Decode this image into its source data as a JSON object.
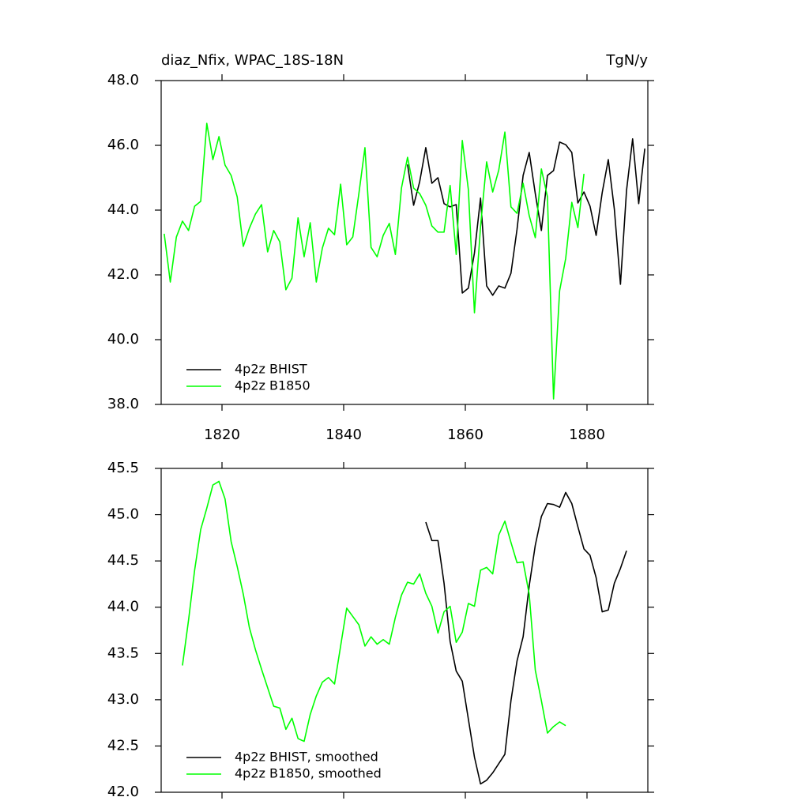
{
  "chart_data": [
    {
      "type": "line",
      "title": "diaz_Nfix, WPAC_18S-18N",
      "right_title": "TgN/y",
      "xlim": [
        1810,
        1890
      ],
      "xticks": [
        1820,
        1840,
        1860,
        1880
      ],
      "show_xtick_labels": true,
      "ylim": [
        38,
        48
      ],
      "yticks": [
        {
          "value": 38,
          "label": "38.0"
        },
        {
          "value": 40,
          "label": "40.0"
        },
        {
          "value": 42,
          "label": "42.0"
        },
        {
          "value": 44,
          "label": "44.0"
        },
        {
          "value": 46,
          "label": "46.0"
        },
        {
          "value": 48,
          "label": "48.0"
        }
      ],
      "legend": "lower left",
      "series": [
        {
          "name": "4p2z BHIST",
          "color": "#000000",
          "x": [
            1850.5,
            1851.5,
            1852.5,
            1853.5,
            1854.5,
            1855.5,
            1856.5,
            1857.5,
            1858.5,
            1859.5,
            1860.5,
            1861.5,
            1862.5,
            1863.5,
            1864.5,
            1865.5,
            1866.5,
            1867.5,
            1868.5,
            1869.5,
            1870.5,
            1871.5,
            1872.5,
            1873.5,
            1874.5,
            1875.5,
            1876.5,
            1877.5,
            1878.5,
            1879.5,
            1880.5,
            1881.5,
            1882.5,
            1883.5,
            1884.5,
            1885.5,
            1886.5,
            1887.5,
            1888.5,
            1889.5
          ],
          "values": [
            45.41,
            44.15,
            44.88,
            45.93,
            44.83,
            45.0,
            44.2,
            44.1,
            44.17,
            41.44,
            41.59,
            42.68,
            44.37,
            41.66,
            41.37,
            41.66,
            41.59,
            42.05,
            43.41,
            45.07,
            45.78,
            44.51,
            43.37,
            45.07,
            45.22,
            46.1,
            46.02,
            45.78,
            44.22,
            44.56,
            44.12,
            43.22,
            44.54,
            45.56,
            44.02,
            41.71,
            44.61,
            46.2,
            44.2,
            45.9
          ]
        },
        {
          "name": "4p2z B1850",
          "color": "#00ff00",
          "x": [
            1810.5,
            1811.5,
            1812.5,
            1813.5,
            1814.5,
            1815.5,
            1816.5,
            1817.5,
            1818.5,
            1819.5,
            1820.5,
            1821.5,
            1822.5,
            1823.5,
            1824.5,
            1825.5,
            1826.5,
            1827.5,
            1828.5,
            1829.5,
            1830.5,
            1831.5,
            1832.5,
            1833.5,
            1834.5,
            1835.5,
            1836.5,
            1837.5,
            1838.5,
            1839.5,
            1840.5,
            1841.5,
            1842.5,
            1843.5,
            1844.5,
            1845.5,
            1846.5,
            1847.5,
            1848.5,
            1849.5,
            1850.5,
            1851.5,
            1852.5,
            1853.5,
            1854.5,
            1855.5,
            1856.5,
            1857.5,
            1858.5,
            1859.5,
            1860.5,
            1861.5,
            1862.5,
            1863.5,
            1864.5,
            1865.5,
            1866.5,
            1867.5,
            1868.5,
            1869.5,
            1870.5,
            1871.5,
            1872.5,
            1873.5,
            1874.5,
            1875.5,
            1876.5,
            1877.5,
            1878.5,
            1879.5
          ],
          "values": [
            43.27,
            41.78,
            43.17,
            43.66,
            43.37,
            44.12,
            44.27,
            46.68,
            45.56,
            46.27,
            45.39,
            45.07,
            44.41,
            42.88,
            43.44,
            43.88,
            44.17,
            42.71,
            43.37,
            43.02,
            41.54,
            41.9,
            43.76,
            42.56,
            43.61,
            41.78,
            42.83,
            43.44,
            43.24,
            44.8,
            42.93,
            43.17,
            44.51,
            45.93,
            42.85,
            42.56,
            43.22,
            43.59,
            42.63,
            44.68,
            45.63,
            44.68,
            44.51,
            44.15,
            43.51,
            43.32,
            43.32,
            44.76,
            42.63,
            46.15,
            44.63,
            40.83,
            43.49,
            45.49,
            44.56,
            45.24,
            46.41,
            44.1,
            43.9,
            44.83,
            43.83,
            43.15,
            45.27,
            44.41,
            38.17,
            41.51,
            42.51,
            44.24,
            43.46,
            45.12
          ]
        }
      ]
    },
    {
      "type": "line",
      "xlim": [
        1810,
        1890
      ],
      "xticks": [
        1820,
        1840,
        1860,
        1880
      ],
      "show_xtick_labels": false,
      "ylim": [
        42,
        45.5
      ],
      "yticks": [
        {
          "value": 42,
          "label": "42.0"
        },
        42.5,
        {
          "value": 43,
          "label": "43.0"
        },
        43.5,
        {
          "value": 44,
          "label": "44.0"
        },
        44.5,
        {
          "value": 45,
          "label": "45.0"
        },
        45.5
      ],
      "legend": "lower left",
      "series": [
        {
          "name": "4p2z BHIST, smoothed",
          "color": "#000000",
          "x": [
            1853.5,
            1854.5,
            1855.5,
            1856.5,
            1857.5,
            1858.5,
            1859.5,
            1860.5,
            1861.5,
            1862.5,
            1863.5,
            1864.5,
            1865.5,
            1866.5,
            1867.5,
            1868.5,
            1869.5,
            1870.5,
            1871.5,
            1872.5,
            1873.5,
            1874.5,
            1875.5,
            1876.5,
            1877.5,
            1878.5,
            1879.5,
            1880.5,
            1881.5,
            1882.5,
            1883.5,
            1884.5,
            1885.5,
            1886.5
          ],
          "values": [
            44.92,
            44.72,
            44.72,
            44.26,
            43.63,
            43.31,
            43.2,
            42.79,
            42.38,
            42.09,
            42.13,
            42.21,
            42.31,
            42.41,
            42.99,
            43.42,
            43.68,
            44.23,
            44.67,
            44.98,
            45.12,
            45.11,
            45.08,
            45.24,
            45.12,
            44.87,
            44.63,
            44.56,
            44.32,
            43.95,
            43.97,
            44.26,
            44.42,
            44.61
          ]
        },
        {
          "name": "4p2z B1850, smoothed",
          "color": "#00ff00",
          "x": [
            1813.5,
            1814.5,
            1815.5,
            1816.5,
            1817.5,
            1818.5,
            1819.5,
            1820.5,
            1821.5,
            1822.5,
            1823.5,
            1824.5,
            1825.5,
            1826.5,
            1827.5,
            1828.5,
            1829.5,
            1830.5,
            1831.5,
            1832.5,
            1833.5,
            1834.5,
            1835.5,
            1836.5,
            1837.5,
            1838.5,
            1839.5,
            1840.5,
            1841.5,
            1842.5,
            1843.5,
            1844.5,
            1845.5,
            1846.5,
            1847.5,
            1848.5,
            1849.5,
            1850.5,
            1851.5,
            1852.5,
            1853.5,
            1854.5,
            1855.5,
            1856.5,
            1857.5,
            1858.5,
            1859.5,
            1860.5,
            1861.5,
            1862.5,
            1863.5,
            1864.5,
            1865.5,
            1866.5,
            1867.5,
            1868.5,
            1869.5,
            1870.5,
            1871.5,
            1872.5,
            1873.5,
            1874.5,
            1875.5,
            1876.5
          ],
          "values": [
            43.37,
            43.86,
            44.4,
            44.84,
            45.07,
            45.32,
            45.36,
            45.17,
            44.71,
            44.44,
            44.14,
            43.78,
            43.54,
            43.33,
            43.13,
            42.93,
            42.91,
            42.68,
            42.8,
            42.58,
            42.55,
            42.84,
            43.04,
            43.19,
            43.24,
            43.17,
            43.58,
            43.99,
            43.9,
            43.81,
            43.58,
            43.68,
            43.6,
            43.65,
            43.6,
            43.89,
            44.13,
            44.27,
            44.25,
            44.36,
            44.15,
            44.01,
            43.72,
            43.95,
            44.01,
            43.62,
            43.73,
            44.04,
            44.01,
            44.4,
            44.43,
            44.36,
            44.78,
            44.93,
            44.7,
            44.48,
            44.49,
            44.14,
            43.32,
            42.99,
            42.64,
            42.71,
            42.76,
            42.72
          ]
        }
      ]
    }
  ]
}
